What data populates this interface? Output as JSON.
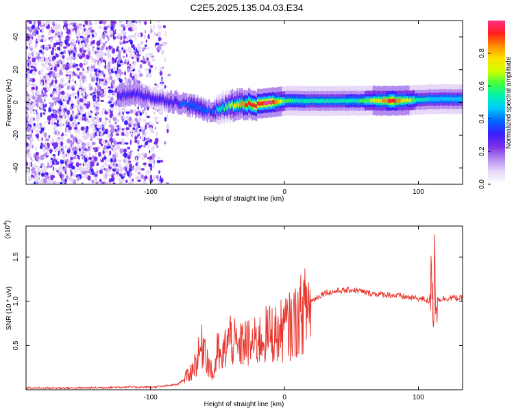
{
  "title": "C2E5.2025.135.04.03.E34",
  "colors": {
    "snr_line": "#e8352e",
    "axis": "#000000",
    "background": "#ffffff",
    "colormap": [
      "#ffffff",
      "#e6d8f7",
      "#b48cf0",
      "#7b2fe6",
      "#3a1fff",
      "#0064ff",
      "#00c8ff",
      "#00f0b0",
      "#40ff40",
      "#d0ff00",
      "#ffe000",
      "#ff8c00",
      "#ff1e1e",
      "#ff2f86"
    ]
  },
  "chart_data": [
    {
      "type": "heatmap",
      "name": "spectrogram",
      "xlabel": "Height of straight line (km)",
      "ylabel": "Frequency (Hz)",
      "xlim": [
        -193,
        133
      ],
      "ylim": [
        -50,
        50
      ],
      "xticks": [
        -100,
        0,
        100
      ],
      "xtick_labels": [
        "-100",
        "0",
        "100"
      ],
      "yticks": [
        -40,
        -20,
        0,
        20,
        40
      ],
      "ytick_labels": [
        "-40",
        "-20",
        "0",
        "20",
        "40"
      ],
      "colorbar": {
        "label": "Normalized spectral amplitude",
        "range": [
          0,
          1
        ],
        "ticks": [
          0.0,
          0.2,
          0.4,
          0.6,
          0.8
        ],
        "tick_labels": [
          "0.0",
          "0.2",
          "0.4",
          "0.6",
          "0.8"
        ]
      },
      "ridge": {
        "description_points_x": [
          -125,
          -110,
          -95,
          -80,
          -70,
          -60,
          -55,
          -50,
          -40,
          -30,
          -20,
          -10,
          0,
          20,
          40,
          60,
          80,
          100,
          110,
          133
        ],
        "frequency_hz": [
          4,
          5,
          2,
          0,
          -2,
          -4,
          -6,
          -4,
          -2,
          -1,
          -1,
          0,
          1,
          1,
          1,
          1,
          1,
          1.5,
          2,
          2
        ],
        "amplitude": [
          0.3,
          0.3,
          0.25,
          0.3,
          0.35,
          0.35,
          0.3,
          0.45,
          0.65,
          0.85,
          0.9,
          0.95,
          0.55,
          0.5,
          0.5,
          0.55,
          0.9,
          0.5,
          0.45,
          0.45
        ]
      },
      "noise_region_x": [
        -193,
        -85
      ]
    },
    {
      "type": "line",
      "name": "snr",
      "xlabel": "Height of straight line (km)",
      "ylabel": "SNR (10 * v/v)",
      "exponent_label": "(x10",
      "exponent_sup": "4",
      "exponent_close": ")",
      "xlim": [
        -193,
        133
      ],
      "ylim": [
        0,
        1.85
      ],
      "xticks": [
        -100,
        0,
        100
      ],
      "xtick_labels": [
        "-100",
        "0",
        "100"
      ],
      "yticks": [
        0.5,
        1.0,
        1.5
      ],
      "ytick_labels": [
        "0.5",
        "1.0",
        "1.5"
      ],
      "series": [
        {
          "name": "SNR",
          "x": [
            -193,
            -150,
            -120,
            -100,
            -90,
            -80,
            -75,
            -70,
            -65,
            -60,
            -57,
            -53,
            -50,
            -47,
            -44,
            -40,
            -35,
            -30,
            -25,
            -20,
            -15,
            -10,
            -5,
            0,
            5,
            10,
            15,
            20,
            25,
            30,
            35,
            40,
            45,
            50,
            55,
            60,
            70,
            80,
            90,
            100,
            105,
            108,
            110,
            111,
            112,
            113,
            115,
            120,
            125,
            133
          ],
          "y": [
            0.02,
            0.02,
            0.03,
            0.03,
            0.04,
            0.06,
            0.12,
            0.2,
            0.35,
            0.55,
            0.3,
            0.15,
            0.45,
            0.3,
            0.5,
            0.6,
            0.45,
            0.55,
            0.5,
            0.55,
            0.6,
            0.65,
            0.62,
            0.7,
            0.72,
            0.8,
            0.9,
            1.0,
            1.05,
            1.1,
            1.1,
            1.12,
            1.12,
            1.13,
            1.12,
            1.1,
            1.08,
            1.07,
            1.05,
            1.03,
            1.02,
            1.0,
            1.3,
            0.4,
            1.75,
            1.05,
            1.02,
            1.03,
            1.04,
            1.03
          ]
        }
      ]
    }
  ]
}
